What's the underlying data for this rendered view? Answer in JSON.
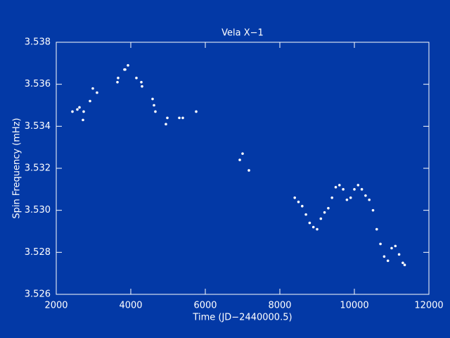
{
  "chart_data": {
    "type": "scatter",
    "title": "Vela X−1",
    "x_label": "Time (JD−2440000.5)",
    "y_label": "Spin Frequency (mHz)",
    "xlim": [
      2000,
      12000
    ],
    "xticks": [
      2000,
      4000,
      6000,
      8000,
      10000,
      12000
    ],
    "ylim": [
      3.526,
      3.538
    ],
    "yticks": [
      3.526,
      3.528,
      {
        "value": 3.53,
        "label": "3.530"
      },
      3.532,
      3.534,
      3.536,
      3.538
    ],
    "series": [
      {
        "color": "#ffffff",
        "x": [
          2434,
          2566,
          2623,
          2717,
          2736,
          2906,
          2981,
          3094,
          3642,
          3660,
          3830,
          3849,
          3925,
          4151,
          4283,
          4302,
          4585,
          4623,
          4660,
          4943,
          4981,
          5302,
          5396,
          5755,
          6925,
          7000,
          7170,
          8400,
          8500,
          8600,
          8700,
          8800,
          8900,
          9000,
          9100,
          9200,
          9300,
          9400,
          9500,
          9600,
          9700,
          9800,
          9900,
          10000,
          10100,
          10200,
          10300,
          10400,
          10500,
          10600,
          10700,
          10800,
          10900,
          11000,
          11100,
          11200,
          11300,
          11350
        ],
        "values": [
          3.5347,
          3.5348,
          3.5349,
          3.5343,
          3.5347,
          3.5352,
          3.5358,
          3.5356,
          3.5361,
          3.5363,
          3.5367,
          3.5367,
          3.5369,
          3.5363,
          3.5361,
          3.5359,
          3.5353,
          3.535,
          3.5347,
          3.5341,
          3.5344,
          3.5344,
          3.5344,
          3.5347,
          3.5324,
          3.5327,
          3.5319,
          3.5306,
          3.5304,
          3.5302,
          3.5298,
          3.5294,
          3.5292,
          3.5291,
          3.5296,
          3.5299,
          3.5301,
          3.5306,
          3.5311,
          3.5312,
          3.531,
          3.5305,
          3.5306,
          3.531,
          3.5312,
          3.531,
          3.5307,
          3.5305,
          3.53,
          3.5291,
          3.5284,
          3.5278,
          3.5276,
          3.5282,
          3.5283,
          3.5279,
          3.5275,
          3.5274
        ]
      }
    ]
  }
}
